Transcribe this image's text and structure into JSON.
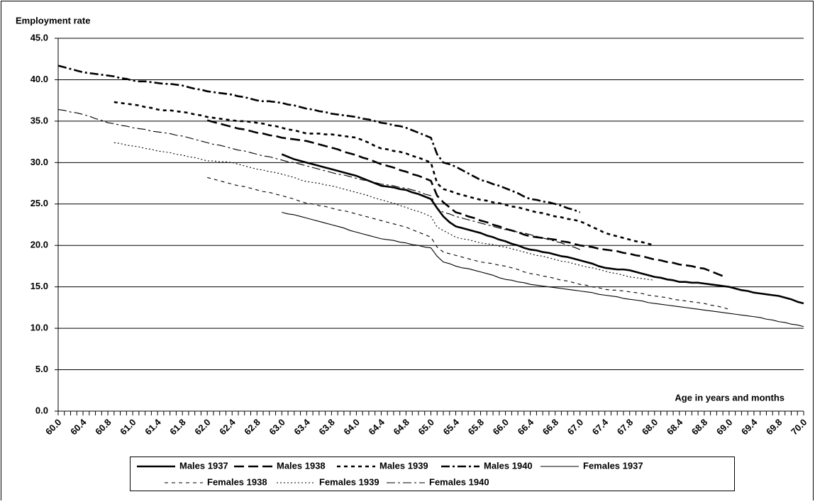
{
  "chart_data": {
    "type": "line",
    "y_label": "Employment rate",
    "x_label": "Age in years and months",
    "ylim": [
      0,
      45
    ],
    "yticks": [
      {
        "value": 0,
        "label": "0.0"
      },
      {
        "value": 5,
        "label": "5.0"
      },
      {
        "value": 10,
        "label": "10.0"
      },
      {
        "value": 15,
        "label": "15.0"
      },
      {
        "value": 20,
        "label": "20.0"
      },
      {
        "value": 25,
        "label": "25.0"
      },
      {
        "value": 30,
        "label": "30.0"
      },
      {
        "value": 35,
        "label": "35.0"
      },
      {
        "value": 40,
        "label": "40.0"
      },
      {
        "value": 45,
        "label": "45.0"
      }
    ],
    "grid": true,
    "legend": "bottom",
    "categories": [
      "60.0",
      null,
      null,
      null,
      "60.4",
      null,
      null,
      null,
      "60.8",
      null,
      null,
      null,
      "61.0",
      null,
      null,
      null,
      "61.4",
      null,
      null,
      null,
      "61.8",
      null,
      null,
      null,
      "62.0",
      null,
      null,
      null,
      "62.4",
      null,
      null,
      null,
      "62.8",
      null,
      null,
      null,
      "63.0",
      null,
      null,
      null,
      "63.4",
      null,
      null,
      null,
      "63.8",
      null,
      null,
      null,
      "64.0",
      null,
      null,
      null,
      "64.4",
      null,
      null,
      null,
      "64.8",
      null,
      null,
      null,
      "65.0",
      null,
      null,
      null,
      "65.4",
      null,
      null,
      null,
      "65.8",
      null,
      null,
      null,
      "66.0",
      null,
      null,
      null,
      "66.4",
      null,
      null,
      null,
      "66.8",
      null,
      null,
      null,
      "67.0",
      null,
      null,
      null,
      "67.4",
      null,
      null,
      null,
      "67.8",
      null,
      null,
      null,
      "68.0",
      null,
      null,
      null,
      "68.4",
      null,
      null,
      null,
      "68.8",
      null,
      null,
      null,
      "69.0",
      null,
      null,
      null,
      "69.4",
      null,
      null,
      null,
      "69.8",
      null,
      null,
      null,
      "70.0"
    ],
    "series": [
      {
        "name": "Males 1937",
        "color": "#000000",
        "style": "solid",
        "weight": "heavy",
        "values": [
          null,
          null,
          null,
          null,
          null,
          null,
          null,
          null,
          null,
          null,
          null,
          null,
          null,
          null,
          null,
          null,
          null,
          null,
          null,
          null,
          null,
          null,
          null,
          null,
          null,
          null,
          null,
          null,
          null,
          null,
          null,
          null,
          null,
          null,
          null,
          null,
          31.0,
          30.7,
          30.4,
          30.2,
          30.0,
          29.8,
          29.6,
          29.4,
          29.2,
          29.0,
          28.8,
          28.6,
          28.4,
          28.1,
          27.8,
          27.5,
          27.2,
          27.1,
          27.0,
          26.8,
          26.7,
          26.4,
          26.2,
          25.9,
          25.6,
          24.5,
          23.5,
          22.8,
          22.3,
          22.1,
          21.9,
          21.7,
          21.5,
          21.2,
          21.0,
          20.7,
          20.5,
          20.2,
          20.0,
          19.7,
          19.5,
          19.4,
          19.2,
          19.1,
          18.9,
          18.7,
          18.6,
          18.4,
          18.2,
          18.0,
          17.8,
          17.5,
          17.3,
          17.2,
          17.1,
          17.1,
          17.0,
          16.8,
          16.6,
          16.4,
          16.2,
          16.1,
          15.9,
          15.8,
          15.6,
          15.6,
          15.5,
          15.5,
          15.4,
          15.3,
          15.2,
          15.1,
          15.0,
          14.8,
          14.6,
          14.5,
          14.3,
          14.2,
          14.1,
          14.0,
          13.9,
          13.7,
          13.5,
          13.2,
          13.0
        ]
      },
      {
        "name": "Males 1938",
        "color": "#000000",
        "style": "long-dash",
        "weight": "heavy",
        "values": [
          null,
          null,
          null,
          null,
          null,
          null,
          null,
          null,
          null,
          null,
          null,
          null,
          null,
          null,
          null,
          null,
          null,
          null,
          null,
          null,
          null,
          null,
          null,
          null,
          35.1,
          34.9,
          34.7,
          34.5,
          34.3,
          34.1,
          34.0,
          33.8,
          33.6,
          33.5,
          33.3,
          33.2,
          33.0,
          32.9,
          32.8,
          32.7,
          32.6,
          32.4,
          32.2,
          32.0,
          31.8,
          31.6,
          31.3,
          31.1,
          30.9,
          30.6,
          30.4,
          30.1,
          29.8,
          29.6,
          29.4,
          29.1,
          28.9,
          28.6,
          28.4,
          28.1,
          27.8,
          26.0,
          25.2,
          24.6,
          24.0,
          23.8,
          23.5,
          23.3,
          23.0,
          22.8,
          22.5,
          22.3,
          22.0,
          21.8,
          21.6,
          21.3,
          21.1,
          21.0,
          20.9,
          20.8,
          20.7,
          20.5,
          20.4,
          20.2,
          20.0,
          19.9,
          19.8,
          19.6,
          19.5,
          19.4,
          19.3,
          19.1,
          19.0,
          18.8,
          18.7,
          18.5,
          18.3,
          18.2,
          18.0,
          17.9,
          17.7,
          17.6,
          17.5,
          17.3,
          17.2,
          16.9,
          16.6,
          16.3,
          null,
          null,
          null,
          null,
          null,
          null,
          null,
          null,
          null,
          null,
          null,
          null,
          null
        ]
      },
      {
        "name": "Males 1939",
        "color": "#000000",
        "style": "dash",
        "weight": "heavy",
        "values": [
          null,
          null,
          null,
          null,
          null,
          null,
          null,
          null,
          null,
          37.3,
          37.2,
          37.1,
          37.0,
          36.9,
          36.7,
          36.6,
          36.4,
          36.3,
          36.3,
          36.2,
          36.1,
          36.0,
          35.8,
          35.7,
          35.5,
          35.4,
          35.3,
          35.2,
          35.1,
          35.0,
          35.0,
          34.9,
          34.8,
          34.7,
          34.5,
          34.4,
          34.2,
          34.0,
          33.9,
          33.7,
          33.5,
          33.5,
          33.5,
          33.4,
          33.4,
          33.3,
          33.2,
          33.1,
          33.0,
          32.7,
          32.4,
          32.0,
          31.7,
          31.6,
          31.4,
          31.3,
          31.1,
          30.8,
          30.6,
          30.3,
          30.0,
          27.5,
          26.8,
          26.6,
          26.3,
          26.1,
          25.9,
          25.7,
          25.5,
          25.4,
          25.2,
          25.1,
          24.9,
          24.7,
          24.6,
          24.4,
          24.2,
          24.0,
          23.9,
          23.7,
          23.5,
          23.4,
          23.2,
          23.1,
          22.9,
          22.6,
          22.2,
          21.9,
          21.5,
          21.3,
          21.1,
          20.9,
          20.7,
          20.5,
          20.4,
          20.2,
          20.0,
          null,
          null,
          null,
          null,
          null,
          null,
          null,
          null,
          null,
          null,
          null,
          null,
          null,
          null,
          null,
          null,
          null,
          null,
          null,
          null,
          null,
          null,
          null,
          null
        ]
      },
      {
        "name": "Males 1940",
        "color": "#000000",
        "style": "dash-dot",
        "weight": "heavy",
        "values": [
          41.7,
          41.5,
          41.3,
          41.1,
          40.9,
          40.8,
          40.7,
          40.6,
          40.5,
          40.4,
          40.2,
          40.1,
          39.9,
          39.8,
          39.8,
          39.7,
          39.6,
          39.5,
          39.5,
          39.4,
          39.3,
          39.1,
          38.9,
          38.8,
          38.6,
          38.5,
          38.4,
          38.3,
          38.2,
          38.0,
          37.9,
          37.7,
          37.5,
          37.4,
          37.4,
          37.3,
          37.2,
          37.0,
          36.9,
          36.7,
          36.5,
          36.4,
          36.2,
          36.1,
          35.9,
          35.8,
          35.7,
          35.6,
          35.5,
          35.3,
          35.2,
          35.0,
          34.8,
          34.7,
          34.5,
          34.4,
          34.2,
          33.9,
          33.6,
          33.3,
          33.0,
          31.0,
          30.0,
          29.8,
          29.5,
          29.1,
          28.7,
          28.3,
          27.9,
          27.7,
          27.4,
          27.2,
          26.9,
          26.6,
          26.3,
          25.9,
          25.6,
          25.5,
          25.3,
          25.2,
          25.0,
          24.8,
          24.5,
          24.3,
          24.0,
          null,
          null,
          null,
          null,
          null,
          null,
          null,
          null,
          null,
          null,
          null,
          null,
          null,
          null,
          null,
          null,
          null,
          null,
          null,
          null,
          null,
          null,
          null,
          null,
          null,
          null,
          null,
          null,
          null,
          null,
          null,
          null,
          null,
          null,
          null,
          null
        ]
      },
      {
        "name": "Females 1937",
        "color": "#000000",
        "style": "solid",
        "weight": "light",
        "values": [
          null,
          null,
          null,
          null,
          null,
          null,
          null,
          null,
          null,
          null,
          null,
          null,
          null,
          null,
          null,
          null,
          null,
          null,
          null,
          null,
          null,
          null,
          null,
          null,
          null,
          null,
          null,
          null,
          null,
          null,
          null,
          null,
          null,
          null,
          null,
          null,
          24.0,
          23.8,
          23.7,
          23.5,
          23.3,
          23.1,
          22.9,
          22.7,
          22.5,
          22.3,
          22.1,
          21.8,
          21.6,
          21.4,
          21.2,
          21.0,
          20.8,
          20.7,
          20.6,
          20.4,
          20.3,
          20.1,
          20.0,
          19.8,
          19.7,
          18.7,
          18.0,
          17.8,
          17.5,
          17.3,
          17.2,
          17.0,
          16.8,
          16.6,
          16.4,
          16.1,
          15.9,
          15.8,
          15.6,
          15.5,
          15.3,
          15.2,
          15.1,
          15.0,
          14.9,
          14.8,
          14.7,
          14.6,
          14.5,
          14.4,
          14.3,
          14.1,
          14.0,
          13.9,
          13.8,
          13.6,
          13.5,
          13.4,
          13.3,
          13.1,
          13.0,
          12.9,
          12.8,
          12.7,
          12.6,
          12.5,
          12.4,
          12.3,
          12.2,
          12.1,
          12.0,
          11.9,
          11.8,
          11.7,
          11.6,
          11.5,
          11.4,
          11.3,
          11.1,
          11.0,
          10.8,
          10.7,
          10.5,
          10.4,
          10.2
        ]
      },
      {
        "name": "Females 1938",
        "color": "#000000",
        "style": "dash",
        "weight": "light",
        "values": [
          null,
          null,
          null,
          null,
          null,
          null,
          null,
          null,
          null,
          null,
          null,
          null,
          null,
          null,
          null,
          null,
          null,
          null,
          null,
          null,
          null,
          null,
          null,
          null,
          28.2,
          28.0,
          27.8,
          27.6,
          27.4,
          27.2,
          27.1,
          26.9,
          26.7,
          26.5,
          26.4,
          26.2,
          26.0,
          25.8,
          25.6,
          25.3,
          25.1,
          25.0,
          24.8,
          24.7,
          24.5,
          24.3,
          24.2,
          24.0,
          23.8,
          23.6,
          23.4,
          23.2,
          23.0,
          22.8,
          22.6,
          22.4,
          22.2,
          21.9,
          21.6,
          21.3,
          21.0,
          19.8,
          19.2,
          19.0,
          18.8,
          18.6,
          18.4,
          18.2,
          18.0,
          17.9,
          17.8,
          17.6,
          17.5,
          17.3,
          17.1,
          16.8,
          16.6,
          16.5,
          16.3,
          16.2,
          16.0,
          15.8,
          15.7,
          15.5,
          15.3,
          15.2,
          15.0,
          14.9,
          14.7,
          14.6,
          14.6,
          14.5,
          14.4,
          14.3,
          14.2,
          14.0,
          13.9,
          13.8,
          13.7,
          13.5,
          13.4,
          13.3,
          13.2,
          13.1,
          13.0,
          12.8,
          12.7,
          12.5,
          12.3,
          null,
          null,
          null,
          null,
          null,
          null,
          null,
          null,
          null,
          null,
          null,
          null
        ]
      },
      {
        "name": "Females 1939",
        "color": "#000000",
        "style": "dot",
        "weight": "light",
        "values": [
          null,
          null,
          null,
          null,
          null,
          null,
          null,
          null,
          null,
          32.4,
          32.3,
          32.1,
          32.0,
          31.9,
          31.7,
          31.6,
          31.4,
          31.3,
          31.2,
          31.0,
          30.9,
          30.7,
          30.6,
          30.4,
          30.2,
          30.2,
          30.1,
          30.1,
          30.0,
          29.8,
          29.6,
          29.4,
          29.2,
          29.1,
          28.9,
          28.8,
          28.6,
          28.4,
          28.2,
          27.9,
          27.7,
          27.6,
          27.5,
          27.3,
          27.2,
          27.0,
          26.8,
          26.6,
          26.4,
          26.2,
          26.0,
          25.7,
          25.5,
          25.3,
          25.1,
          24.8,
          24.6,
          24.3,
          24.1,
          23.8,
          23.5,
          22.2,
          21.8,
          21.4,
          21.0,
          20.8,
          20.7,
          20.5,
          20.3,
          20.2,
          20.1,
          19.9,
          19.8,
          19.6,
          19.4,
          19.2,
          19.0,
          18.8,
          18.7,
          18.5,
          18.3,
          18.1,
          18.0,
          17.8,
          17.6,
          17.4,
          17.3,
          17.1,
          16.9,
          16.7,
          16.6,
          16.4,
          16.2,
          16.1,
          16.0,
          15.9,
          15.8,
          null,
          null,
          null,
          null,
          null,
          null,
          null,
          null,
          null,
          null,
          null,
          null,
          null,
          null,
          null,
          null,
          null,
          null,
          null,
          null,
          null,
          null,
          null,
          null
        ]
      },
      {
        "name": "Females 1940",
        "color": "#000000",
        "style": "dash-dot",
        "weight": "light",
        "values": [
          36.4,
          36.3,
          36.1,
          36.0,
          35.8,
          35.6,
          35.3,
          35.1,
          34.8,
          34.7,
          34.5,
          34.4,
          34.2,
          34.1,
          34.0,
          33.8,
          33.7,
          33.6,
          33.5,
          33.3,
          33.2,
          33.0,
          32.8,
          32.6,
          32.4,
          32.2,
          32.1,
          31.9,
          31.7,
          31.5,
          31.4,
          31.2,
          31.0,
          30.8,
          30.7,
          30.5,
          30.3,
          30.1,
          30.0,
          29.8,
          29.6,
          29.4,
          29.2,
          29.0,
          28.8,
          28.6,
          28.5,
          28.3,
          28.1,
          27.9,
          27.8,
          27.6,
          27.4,
          27.3,
          27.2,
          27.0,
          26.9,
          26.7,
          26.5,
          26.2,
          26.0,
          24.5,
          24.0,
          23.8,
          23.5,
          23.3,
          23.1,
          22.9,
          22.7,
          22.5,
          22.3,
          22.1,
          21.9,
          21.8,
          21.6,
          21.5,
          21.3,
          21.1,
          20.9,
          20.7,
          20.5,
          20.3,
          20.0,
          19.8,
          19.5,
          null,
          null,
          null,
          null,
          null,
          null,
          null,
          null,
          null,
          null,
          null,
          null,
          null,
          null,
          null,
          null,
          null,
          null,
          null,
          null,
          null,
          null,
          null,
          null,
          null,
          null,
          null,
          null,
          null,
          null,
          null,
          null,
          null,
          null,
          null,
          null
        ]
      }
    ]
  }
}
